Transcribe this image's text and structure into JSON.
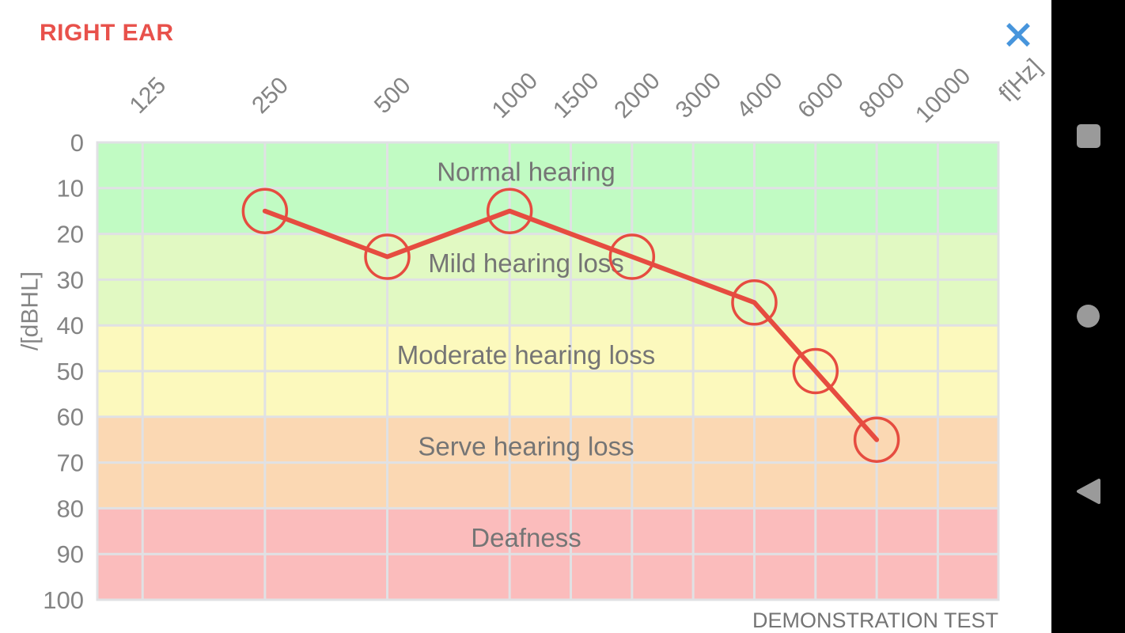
{
  "header": {
    "title": "RIGHT EAR",
    "close_icon": "close-x",
    "title_color": "#e8514b",
    "close_color": "#4795dc"
  },
  "chart_data": {
    "type": "line",
    "x_unit_label": "f[Hz]",
    "y_axis_label": "/[dBHL]",
    "footer": "DEMONSTRATION TEST",
    "x_categories": [
      125,
      250,
      500,
      1000,
      1500,
      2000,
      3000,
      4000,
      6000,
      8000,
      10000
    ],
    "y_ticks": [
      0,
      10,
      20,
      30,
      40,
      50,
      60,
      70,
      80,
      90,
      100
    ],
    "ylim": [
      0,
      100
    ],
    "y_inverted": true,
    "grid": true,
    "grid_color": "#e0e1e4",
    "zones": [
      {
        "label": "Normal hearing",
        "from": 0,
        "to": 20,
        "color": "#c1fbc3"
      },
      {
        "label": "Mild hearing loss",
        "from": 20,
        "to": 40,
        "color": "#e1f9c2"
      },
      {
        "label": "Moderate hearing loss",
        "from": 40,
        "to": 60,
        "color": "#fcf9bd"
      },
      {
        "label": "Serve hearing loss",
        "from": 60,
        "to": 80,
        "color": "#fbd8b3"
      },
      {
        "label": "Deafness",
        "from": 80,
        "to": 100,
        "color": "#fbbcbc"
      }
    ],
    "series": [
      {
        "name": "right-ear-threshold",
        "color": "#e64c40",
        "marker": "open-circle",
        "points": [
          {
            "x": 250,
            "y": 15
          },
          {
            "x": 500,
            "y": 25
          },
          {
            "x": 1000,
            "y": 15
          },
          {
            "x": 2000,
            "y": 25
          },
          {
            "x": 4000,
            "y": 35
          },
          {
            "x": 6000,
            "y": 50
          },
          {
            "x": 8000,
            "y": 65
          }
        ]
      }
    ]
  },
  "nav_bar": {
    "icons": [
      "recent-apps-square",
      "home-circle",
      "back-triangle"
    ],
    "icon_color": "#9a9a9a",
    "background": "#000000"
  }
}
